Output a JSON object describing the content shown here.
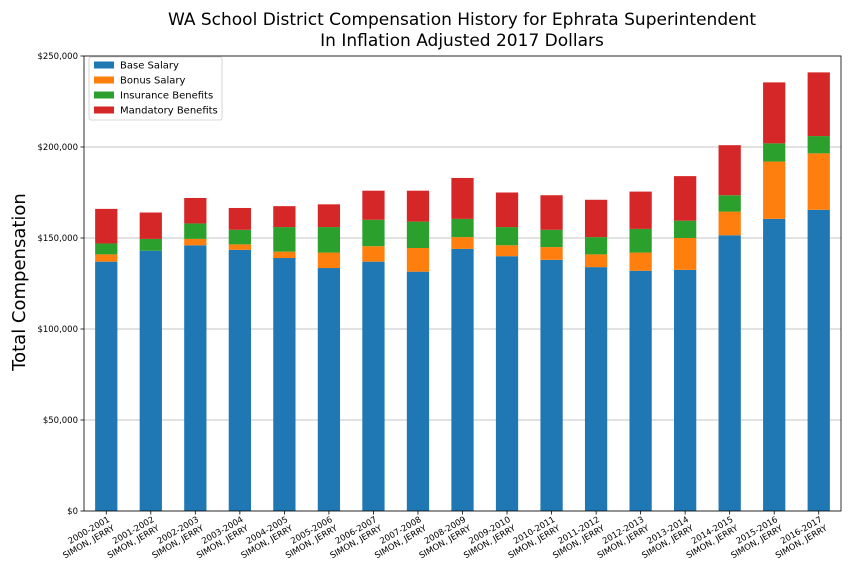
{
  "chart_data": {
    "type": "bar",
    "stacked": true,
    "title": [
      "WA School District Compensation History for Ephrata Superintendent",
      "In Inflation Adjusted 2017 Dollars"
    ],
    "ylabel": "Total Compensation",
    "xlabel": "",
    "ylim": [
      0,
      250000
    ],
    "yticks": [
      {
        "value": 0,
        "label": "$0"
      },
      {
        "value": 50000,
        "label": "$50,000"
      },
      {
        "value": 100000,
        "label": "$100,000"
      },
      {
        "value": 150000,
        "label": "$150,000"
      },
      {
        "value": 200000,
        "label": "$200,000"
      },
      {
        "value": 250000,
        "label": "$250,000"
      }
    ],
    "grid": "horizontal",
    "legend_position": "top-left",
    "categories": [
      {
        "year": "2000-2001",
        "name": "SIMON, JERRY"
      },
      {
        "year": "2001-2002",
        "name": "SIMON, JERRY"
      },
      {
        "year": "2002-2003",
        "name": "SIMON, JERRY"
      },
      {
        "year": "2003-2004",
        "name": "SIMON, JERRY"
      },
      {
        "year": "2004-2005",
        "name": "SIMON, JERRY"
      },
      {
        "year": "2005-2006",
        "name": "SIMON, JERRY"
      },
      {
        "year": "2006-2007",
        "name": "SIMON, JERRY"
      },
      {
        "year": "2007-2008",
        "name": "SIMON, JERRY"
      },
      {
        "year": "2008-2009",
        "name": "SIMON, JERRY"
      },
      {
        "year": "2009-2010",
        "name": "SIMON, JERRY"
      },
      {
        "year": "2010-2011",
        "name": "SIMON, JERRY"
      },
      {
        "year": "2011-2012",
        "name": "SIMON, JERRY"
      },
      {
        "year": "2012-2013",
        "name": "SIMON, JERRY"
      },
      {
        "year": "2013-2014",
        "name": "SIMON, JERRY"
      },
      {
        "year": "2014-2015",
        "name": "SIMON, JERRY"
      },
      {
        "year": "2015-2016",
        "name": "SIMON, JERRY"
      },
      {
        "year": "2016-2017",
        "name": "SIMON, JERRY"
      }
    ],
    "series": [
      {
        "name": "Base Salary",
        "color": "#1f77b4",
        "values": [
          137000,
          143000,
          146000,
          143500,
          139000,
          133500,
          137000,
          131500,
          144000,
          140000,
          138000,
          134000,
          132000,
          132500,
          151500,
          160500,
          165500
        ]
      },
      {
        "name": "Bonus Salary",
        "color": "#ff7f0e",
        "values": [
          4000,
          0,
          3500,
          3000,
          3500,
          8500,
          8500,
          13000,
          6500,
          6000,
          7000,
          7000,
          10000,
          17500,
          13000,
          31500,
          31000
        ]
      },
      {
        "name": "Insurance Benefits",
        "color": "#2ca02c",
        "values": [
          6000,
          6500,
          8500,
          8000,
          13500,
          14000,
          14500,
          14500,
          10000,
          10000,
          9500,
          9500,
          13000,
          9500,
          9000,
          10000,
          9500
        ]
      },
      {
        "name": "Mandatory Benefits",
        "color": "#d62728",
        "values": [
          19000,
          14500,
          14000,
          12000,
          11500,
          12500,
          16000,
          17000,
          22500,
          19000,
          19000,
          20500,
          20500,
          24500,
          27500,
          33500,
          35000
        ]
      }
    ]
  }
}
